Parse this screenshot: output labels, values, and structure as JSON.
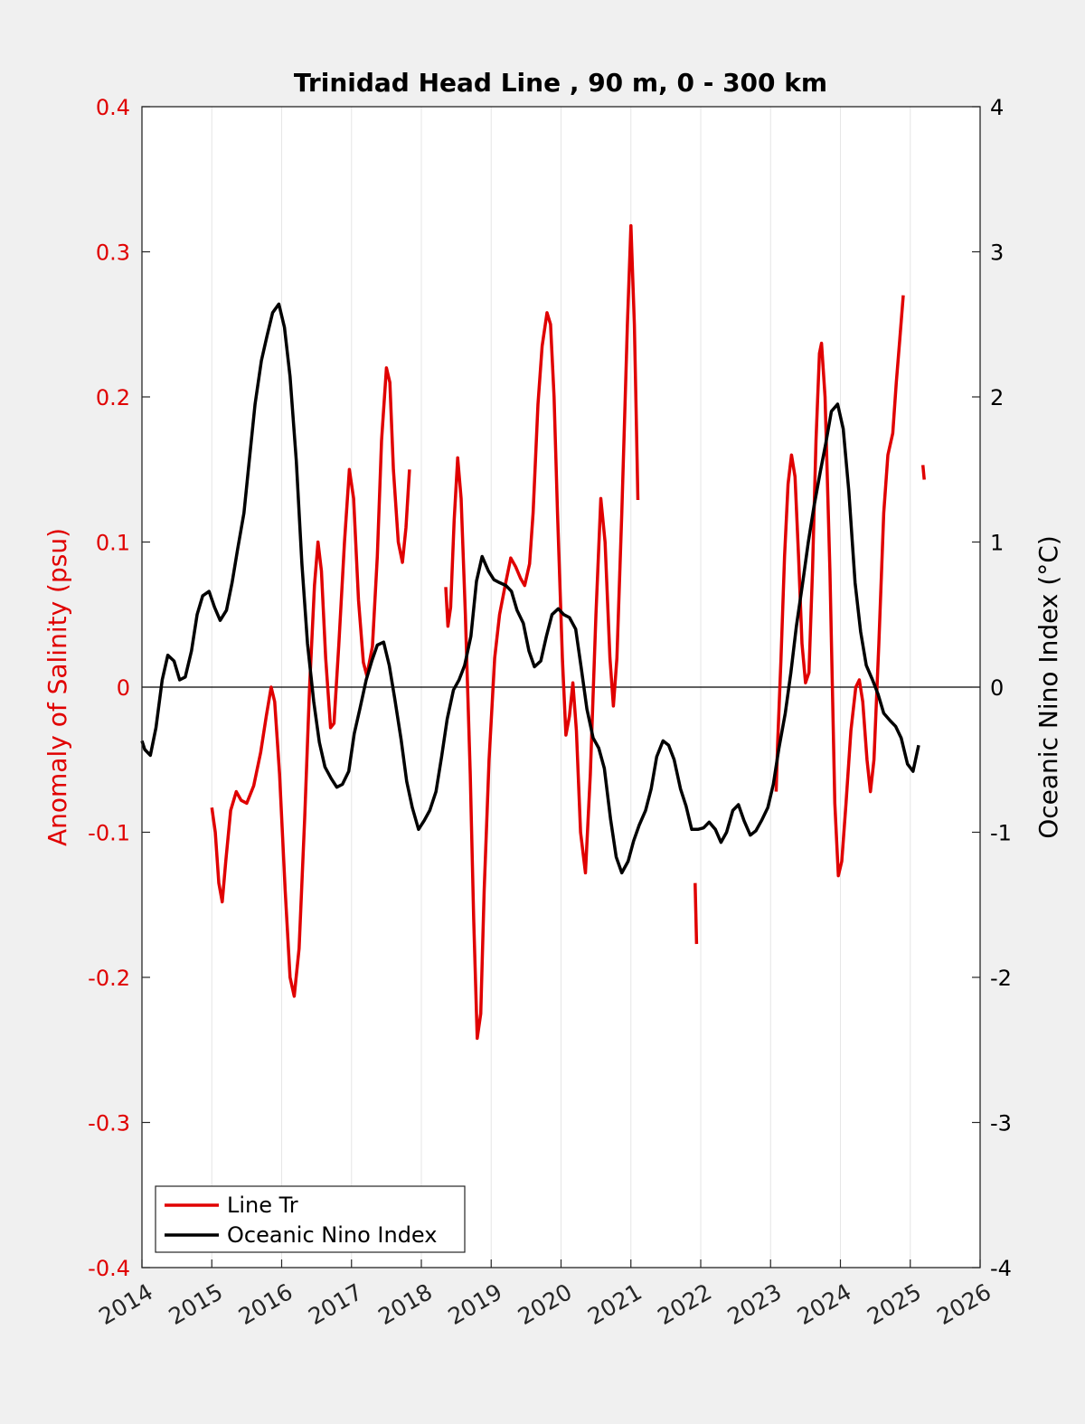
{
  "chart_data": {
    "type": "line",
    "title": "Trinidad Head Line , 90 m, 0 - 300 km",
    "ylabel_left": "Anomaly of Salinity (psu)",
    "ylabel_right": "Oceanic Nino Index (°C)",
    "xlabel": "",
    "xlim": [
      2014,
      2026
    ],
    "ylim_left": [
      -0.4,
      0.4
    ],
    "ylim_right": [
      -4,
      4
    ],
    "x_ticks": [
      "2014",
      "2015",
      "2016",
      "2017",
      "2018",
      "2019",
      "2020",
      "2021",
      "2022",
      "2023",
      "2024",
      "2025",
      "2026"
    ],
    "y_ticks_left": [
      "-0.4",
      "-0.3",
      "-0.2",
      "-0.1",
      "0",
      "0.1",
      "0.2",
      "0.3",
      "0.4"
    ],
    "y_ticks_right": [
      "-4",
      "-3",
      "-2",
      "-1",
      "0",
      "1",
      "2",
      "3",
      "4"
    ],
    "grid": "vertical",
    "zero_line": true,
    "legend": {
      "placement": "bottom-left",
      "entries": [
        "Line Tr",
        "Oceanic Nino Index"
      ]
    },
    "colors": {
      "salinity": "#e00000",
      "oni": "#000000",
      "grid": "#e6e6e6"
    },
    "series": [
      {
        "name": "Line Tr",
        "axis": "left",
        "segments": [
          [
            [
              2015.0,
              -0.083
            ],
            [
              2015.05,
              -0.1
            ],
            [
              2015.1,
              -0.135
            ],
            [
              2015.15,
              -0.148
            ],
            [
              2015.2,
              -0.12
            ],
            [
              2015.27,
              -0.085
            ],
            [
              2015.35,
              -0.072
            ],
            [
              2015.42,
              -0.078
            ],
            [
              2015.5,
              -0.08
            ],
            [
              2015.6,
              -0.068
            ],
            [
              2015.7,
              -0.045
            ],
            [
              2015.78,
              -0.02
            ],
            [
              2015.85,
              0.0
            ],
            [
              2015.9,
              -0.01
            ],
            [
              2015.97,
              -0.06
            ],
            [
              2016.05,
              -0.14
            ],
            [
              2016.12,
              -0.2
            ],
            [
              2016.18,
              -0.213
            ],
            [
              2016.25,
              -0.18
            ],
            [
              2016.33,
              -0.09
            ],
            [
              2016.4,
              0.0
            ],
            [
              2016.47,
              0.07
            ],
            [
              2016.52,
              0.1
            ],
            [
              2016.57,
              0.08
            ],
            [
              2016.63,
              0.02
            ],
            [
              2016.7,
              -0.028
            ],
            [
              2016.75,
              -0.025
            ],
            [
              2016.82,
              0.03
            ],
            [
              2016.9,
              0.1
            ],
            [
              2016.97,
              0.15
            ],
            [
              2017.03,
              0.13
            ],
            [
              2017.1,
              0.06
            ],
            [
              2017.17,
              0.017
            ],
            [
              2017.22,
              0.008
            ],
            [
              2017.3,
              0.028
            ],
            [
              2017.37,
              0.09
            ],
            [
              2017.43,
              0.17
            ],
            [
              2017.5,
              0.22
            ],
            [
              2017.55,
              0.21
            ],
            [
              2017.6,
              0.15
            ],
            [
              2017.67,
              0.1
            ],
            [
              2017.73,
              0.086
            ],
            [
              2017.78,
              0.11
            ],
            [
              2017.83,
              0.15
            ]
          ],
          [
            [
              2018.35,
              0.069
            ],
            [
              2018.38,
              0.042
            ],
            [
              2018.42,
              0.055
            ],
            [
              2018.47,
              0.115
            ],
            [
              2018.52,
              0.158
            ],
            [
              2018.57,
              0.13
            ],
            [
              2018.63,
              0.05
            ],
            [
              2018.7,
              -0.06
            ],
            [
              2018.75,
              -0.16
            ],
            [
              2018.8,
              -0.242
            ],
            [
              2018.85,
              -0.225
            ],
            [
              2018.9,
              -0.14
            ],
            [
              2018.97,
              -0.05
            ],
            [
              2019.05,
              0.02
            ],
            [
              2019.12,
              0.05
            ],
            [
              2019.2,
              0.07
            ],
            [
              2019.28,
              0.089
            ],
            [
              2019.35,
              0.083
            ],
            [
              2019.42,
              0.075
            ],
            [
              2019.48,
              0.07
            ],
            [
              2019.55,
              0.085
            ],
            [
              2019.6,
              0.12
            ],
            [
              2019.67,
              0.195
            ],
            [
              2019.73,
              0.235
            ],
            [
              2019.8,
              0.258
            ],
            [
              2019.85,
              0.25
            ],
            [
              2019.9,
              0.2
            ],
            [
              2019.95,
              0.12
            ],
            [
              2020.02,
              0.02
            ],
            [
              2020.07,
              -0.033
            ],
            [
              2020.12,
              -0.02
            ],
            [
              2020.17,
              0.003
            ],
            [
              2020.22,
              -0.03
            ],
            [
              2020.28,
              -0.1
            ],
            [
              2020.35,
              -0.128
            ],
            [
              2020.42,
              -0.06
            ],
            [
              2020.5,
              0.05
            ],
            [
              2020.57,
              0.13
            ],
            [
              2020.63,
              0.1
            ],
            [
              2020.7,
              0.02
            ],
            [
              2020.75,
              -0.013
            ],
            [
              2020.8,
              0.02
            ],
            [
              2020.87,
              0.12
            ],
            [
              2020.95,
              0.25
            ],
            [
              2021.0,
              0.318
            ],
            [
              2021.05,
              0.25
            ],
            [
              2021.08,
              0.18
            ],
            [
              2021.1,
              0.129
            ]
          ],
          [
            [
              2021.92,
              -0.135
            ],
            [
              2021.94,
              -0.177
            ]
          ],
          [
            [
              2023.08,
              -0.072
            ],
            [
              2023.1,
              -0.04
            ],
            [
              2023.15,
              0.02
            ],
            [
              2023.2,
              0.09
            ],
            [
              2023.25,
              0.14
            ],
            [
              2023.3,
              0.16
            ],
            [
              2023.35,
              0.145
            ],
            [
              2023.4,
              0.09
            ],
            [
              2023.45,
              0.03
            ],
            [
              2023.5,
              0.003
            ],
            [
              2023.55,
              0.01
            ],
            [
              2023.6,
              0.08
            ],
            [
              2023.65,
              0.17
            ],
            [
              2023.7,
              0.23
            ],
            [
              2023.73,
              0.237
            ],
            [
              2023.78,
              0.2
            ],
            [
              2023.85,
              0.08
            ],
            [
              2023.92,
              -0.08
            ],
            [
              2023.97,
              -0.13
            ],
            [
              2024.02,
              -0.12
            ],
            [
              2024.08,
              -0.08
            ],
            [
              2024.15,
              -0.03
            ],
            [
              2024.22,
              0.0
            ],
            [
              2024.27,
              0.005
            ],
            [
              2024.32,
              -0.01
            ],
            [
              2024.38,
              -0.05
            ],
            [
              2024.43,
              -0.072
            ],
            [
              2024.48,
              -0.05
            ],
            [
              2024.55,
              0.03
            ],
            [
              2024.62,
              0.12
            ],
            [
              2024.68,
              0.16
            ],
            [
              2024.75,
              0.175
            ],
            [
              2024.8,
              0.21
            ],
            [
              2024.85,
              0.24
            ],
            [
              2024.9,
              0.27
            ]
          ],
          [
            [
              2025.18,
              0.153
            ],
            [
              2025.2,
              0.143
            ]
          ]
        ]
      },
      {
        "name": "Oceanic Nino Index",
        "axis": "right",
        "points": [
          [
            2014.0,
            -0.37
          ],
          [
            2014.04,
            -0.43
          ],
          [
            2014.12,
            -0.47
          ],
          [
            2014.2,
            -0.28
          ],
          [
            2014.29,
            0.05
          ],
          [
            2014.37,
            0.22
          ],
          [
            2014.46,
            0.18
          ],
          [
            2014.54,
            0.05
          ],
          [
            2014.62,
            0.07
          ],
          [
            2014.71,
            0.25
          ],
          [
            2014.79,
            0.5
          ],
          [
            2014.87,
            0.63
          ],
          [
            2014.96,
            0.66
          ],
          [
            2015.04,
            0.55
          ],
          [
            2015.12,
            0.46
          ],
          [
            2015.21,
            0.53
          ],
          [
            2015.29,
            0.72
          ],
          [
            2015.37,
            0.95
          ],
          [
            2015.46,
            1.2
          ],
          [
            2015.54,
            1.58
          ],
          [
            2015.62,
            1.95
          ],
          [
            2015.71,
            2.25
          ],
          [
            2015.79,
            2.42
          ],
          [
            2015.87,
            2.58
          ],
          [
            2015.96,
            2.64
          ],
          [
            2016.04,
            2.48
          ],
          [
            2016.12,
            2.14
          ],
          [
            2016.21,
            1.56
          ],
          [
            2016.29,
            0.85
          ],
          [
            2016.37,
            0.3
          ],
          [
            2016.46,
            -0.1
          ],
          [
            2016.54,
            -0.38
          ],
          [
            2016.62,
            -0.55
          ],
          [
            2016.71,
            -0.63
          ],
          [
            2016.79,
            -0.69
          ],
          [
            2016.87,
            -0.67
          ],
          [
            2016.96,
            -0.58
          ],
          [
            2017.04,
            -0.32
          ],
          [
            2017.12,
            -0.15
          ],
          [
            2017.21,
            0.05
          ],
          [
            2017.29,
            0.18
          ],
          [
            2017.37,
            0.29
          ],
          [
            2017.46,
            0.31
          ],
          [
            2017.54,
            0.15
          ],
          [
            2017.62,
            -0.08
          ],
          [
            2017.71,
            -0.36
          ],
          [
            2017.79,
            -0.65
          ],
          [
            2017.87,
            -0.83
          ],
          [
            2017.96,
            -0.98
          ],
          [
            2018.04,
            -0.92
          ],
          [
            2018.12,
            -0.85
          ],
          [
            2018.21,
            -0.72
          ],
          [
            2018.29,
            -0.48
          ],
          [
            2018.37,
            -0.22
          ],
          [
            2018.46,
            -0.02
          ],
          [
            2018.54,
            0.05
          ],
          [
            2018.62,
            0.15
          ],
          [
            2018.71,
            0.35
          ],
          [
            2018.79,
            0.73
          ],
          [
            2018.87,
            0.9
          ],
          [
            2018.96,
            0.8
          ],
          [
            2019.04,
            0.74
          ],
          [
            2019.12,
            0.72
          ],
          [
            2019.21,
            0.7
          ],
          [
            2019.29,
            0.66
          ],
          [
            2019.37,
            0.53
          ],
          [
            2019.46,
            0.44
          ],
          [
            2019.54,
            0.25
          ],
          [
            2019.62,
            0.14
          ],
          [
            2019.71,
            0.18
          ],
          [
            2019.79,
            0.35
          ],
          [
            2019.87,
            0.5
          ],
          [
            2019.96,
            0.54
          ],
          [
            2020.04,
            0.5
          ],
          [
            2020.12,
            0.48
          ],
          [
            2020.21,
            0.4
          ],
          [
            2020.29,
            0.13
          ],
          [
            2020.37,
            -0.15
          ],
          [
            2020.46,
            -0.35
          ],
          [
            2020.54,
            -0.42
          ],
          [
            2020.62,
            -0.56
          ],
          [
            2020.71,
            -0.91
          ],
          [
            2020.79,
            -1.17
          ],
          [
            2020.87,
            -1.28
          ],
          [
            2020.96,
            -1.2
          ],
          [
            2021.04,
            -1.06
          ],
          [
            2021.12,
            -0.95
          ],
          [
            2021.21,
            -0.85
          ],
          [
            2021.29,
            -0.7
          ],
          [
            2021.37,
            -0.48
          ],
          [
            2021.46,
            -0.37
          ],
          [
            2021.54,
            -0.4
          ],
          [
            2021.62,
            -0.5
          ],
          [
            2021.71,
            -0.7
          ],
          [
            2021.79,
            -0.82
          ],
          [
            2021.87,
            -0.98
          ],
          [
            2021.96,
            -0.98
          ],
          [
            2022.04,
            -0.97
          ],
          [
            2022.12,
            -0.93
          ],
          [
            2022.21,
            -0.98
          ],
          [
            2022.29,
            -1.07
          ],
          [
            2022.37,
            -1.0
          ],
          [
            2022.46,
            -0.85
          ],
          [
            2022.54,
            -0.81
          ],
          [
            2022.62,
            -0.92
          ],
          [
            2022.71,
            -1.02
          ],
          [
            2022.79,
            -0.99
          ],
          [
            2022.87,
            -0.92
          ],
          [
            2022.96,
            -0.83
          ],
          [
            2023.04,
            -0.67
          ],
          [
            2023.12,
            -0.42
          ],
          [
            2023.21,
            -0.18
          ],
          [
            2023.29,
            0.1
          ],
          [
            2023.37,
            0.42
          ],
          [
            2023.46,
            0.72
          ],
          [
            2023.54,
            1.0
          ],
          [
            2023.62,
            1.24
          ],
          [
            2023.71,
            1.48
          ],
          [
            2023.79,
            1.68
          ],
          [
            2023.87,
            1.9
          ],
          [
            2023.96,
            1.95
          ],
          [
            2024.04,
            1.78
          ],
          [
            2024.12,
            1.35
          ],
          [
            2024.21,
            0.72
          ],
          [
            2024.29,
            0.38
          ],
          [
            2024.37,
            0.15
          ],
          [
            2024.46,
            0.05
          ],
          [
            2024.54,
            -0.05
          ],
          [
            2024.62,
            -0.18
          ],
          [
            2024.71,
            -0.23
          ],
          [
            2024.79,
            -0.27
          ],
          [
            2024.87,
            -0.35
          ],
          [
            2024.96,
            -0.53
          ],
          [
            2025.04,
            -0.58
          ],
          [
            2025.12,
            -0.4
          ]
        ]
      }
    ]
  }
}
